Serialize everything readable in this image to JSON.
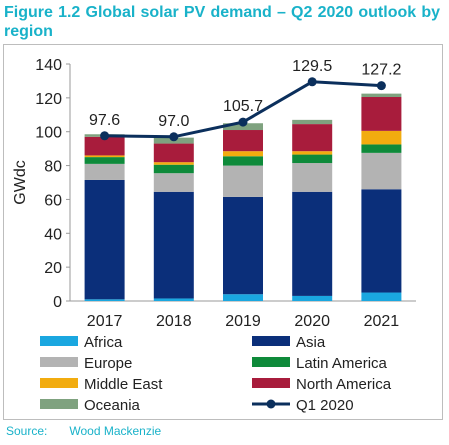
{
  "chart_data": {
    "type": "bar",
    "title": "Figure 1.2 Global solar PV demand – Q2 2020 outlook by region",
    "ylabel": "GWdc",
    "xlabel": "",
    "ylim": [
      0,
      140
    ],
    "yticks": [
      0,
      20,
      40,
      60,
      80,
      100,
      120,
      140
    ],
    "categories": [
      "2017",
      "2018",
      "2019",
      "2020",
      "2021"
    ],
    "grid": false,
    "legend_position": "bottom",
    "series": [
      {
        "name": "Africa",
        "color": "#1aa7e0",
        "values": [
          1,
          1.5,
          4,
          3,
          5
        ]
      },
      {
        "name": "Asia",
        "color": "#0b2f7a",
        "values": [
          70.5,
          63,
          57.5,
          61.5,
          61
        ]
      },
      {
        "name": "Europe",
        "color": "#b3b3b3",
        "values": [
          9.5,
          11,
          18.5,
          17,
          21.5
        ]
      },
      {
        "name": "Latin America",
        "color": "#0e8a3a",
        "values": [
          4,
          5,
          5.5,
          5,
          5
        ]
      },
      {
        "name": "Middle East",
        "color": "#f2ac0f",
        "values": [
          1,
          1.5,
          3,
          2,
          8
        ]
      },
      {
        "name": "North America",
        "color": "#a81c3c",
        "values": [
          11,
          11,
          12.5,
          16,
          20
        ]
      },
      {
        "name": "Oceania",
        "color": "#7fa27f",
        "values": [
          1.5,
          3.5,
          4,
          2.5,
          2
        ]
      }
    ],
    "line": {
      "name": "Q1 2020",
      "color": "#0b2f5c",
      "values": [
        97.6,
        97.0,
        105.7,
        129.5,
        127.2
      ],
      "labels": [
        "97.6",
        "97.0",
        "105.7",
        "129.5",
        "127.2"
      ]
    }
  },
  "source": {
    "label": "Source:",
    "name": "Wood Mackenzie"
  }
}
